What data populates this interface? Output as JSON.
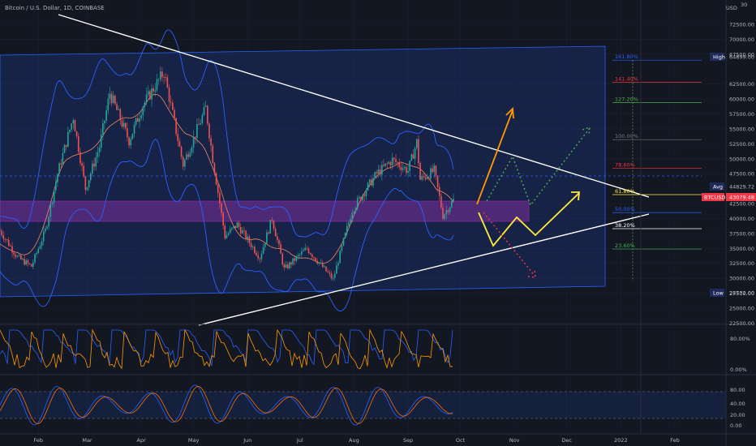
{
  "chart": {
    "title": "Bitcoin / U.S. Dollar, 1D, COINBASE",
    "currency": "USD",
    "currency_sup": "30"
  },
  "y_axis_labels": [
    "72500.00",
    "70000.00",
    "67500.00",
    "62500.00",
    "60000.00",
    "57500.00",
    "55000.00",
    "52500.00",
    "50000.00",
    "47500.00",
    "42500.00",
    "40000.00",
    "37500.00",
    "35000.00",
    "32500.00",
    "30000.00",
    "27500.00",
    "25000.00",
    "22500.00"
  ],
  "x_axis_labels": [
    "Feb",
    "Mar",
    "Apr",
    "May",
    "Jun",
    "Jul",
    "Aug",
    "Sep",
    "Oct",
    "Nov",
    "Dec",
    "2022",
    "Feb"
  ],
  "fib_levels": [
    {
      "label": "161.80%",
      "color": "#2962ff"
    },
    {
      "label": "141.40%",
      "color": "#f23645"
    },
    {
      "label": "127.20%",
      "color": "#4caf50"
    },
    {
      "label": "100.00%",
      "color": "#787b86"
    },
    {
      "label": "78.60%",
      "color": "#f23645"
    },
    {
      "label": "61.80%",
      "color": "#ffeb3b"
    },
    {
      "label": "50.00%",
      "color": "#2962ff"
    },
    {
      "label": "38.20%",
      "color": "#ffffff"
    },
    {
      "label": "23.60%",
      "color": "#4caf50"
    }
  ],
  "price_tags": {
    "high_label": "High",
    "high_value": "64899.00",
    "avg_label": "Avg",
    "avg_value": "44829.72",
    "btc_label": "BTCUSD",
    "btc_value": "43079.48",
    "low_label": "Low",
    "low_value": "28732.00"
  },
  "osc1_labels": [
    "80.00%",
    "0.00%"
  ],
  "osc2_labels": [
    "80.00",
    "40.00",
    "20.00",
    "0.00"
  ],
  "colors": {
    "background": "#131722",
    "channel": "#1e3a8a",
    "channel_border": "#2962ff",
    "zone": "#7b2f9e",
    "up_candle": "#26a69a",
    "down_candle": "#ef5350",
    "trendline": "#ffffff",
    "arrow_orange": "#ff9800",
    "arrow_yellow": "#ffeb3b",
    "arrow_green_dotted": "#4caf50",
    "arrow_red_dotted": "#f23645"
  },
  "chart_data": {
    "type": "candlestick",
    "title": "Bitcoin / U.S. Dollar, 1D, COINBASE",
    "ylim": [
      22500,
      72500
    ],
    "x_range": [
      "2021-01-10",
      "2022-02-28"
    ],
    "price_path": [
      [
        "2021-01-10",
        38000
      ],
      [
        "2021-01-20",
        33500
      ],
      [
        "2021-01-28",
        32000
      ],
      [
        "2021-02-05",
        38000
      ],
      [
        "2021-02-12",
        47500
      ],
      [
        "2021-02-21",
        57000
      ],
      [
        "2021-02-28",
        45000
      ],
      [
        "2021-03-08",
        52000
      ],
      [
        "2021-03-14",
        61000
      ],
      [
        "2021-03-25",
        53000
      ],
      [
        "2021-04-02",
        59000
      ],
      [
        "2021-04-14",
        64500
      ],
      [
        "2021-04-25",
        49000
      ],
      [
        "2021-05-08",
        58500
      ],
      [
        "2021-05-12",
        50000
      ],
      [
        "2021-05-19",
        37000
      ],
      [
        "2021-05-26",
        39000
      ],
      [
        "2021-06-08",
        33500
      ],
      [
        "2021-06-15",
        40000
      ],
      [
        "2021-06-22",
        31500
      ],
      [
        "2021-07-05",
        35000
      ],
      [
        "2021-07-20",
        29800
      ],
      [
        "2021-07-31",
        41500
      ],
      [
        "2021-08-14",
        47500
      ],
      [
        "2021-08-23",
        49800
      ],
      [
        "2021-09-01",
        48000
      ],
      [
        "2021-09-06",
        52800
      ],
      [
        "2021-09-08",
        46500
      ],
      [
        "2021-09-16",
        48000
      ],
      [
        "2021-09-21",
        40500
      ],
      [
        "2021-09-27",
        43079
      ]
    ],
    "high": 64899,
    "low": 28732,
    "avg": 44829.72,
    "last": 43079.48,
    "fib_levels": {
      "161.80%": 66500,
      "141.40%": 62800,
      "127.20%": 59400,
      "100.00%": 53200,
      "78.60%": 48400,
      "61.80%": 44000,
      "50.00%": 41000,
      "38.20%": 38300,
      "23.60%": 34900
    }
  }
}
